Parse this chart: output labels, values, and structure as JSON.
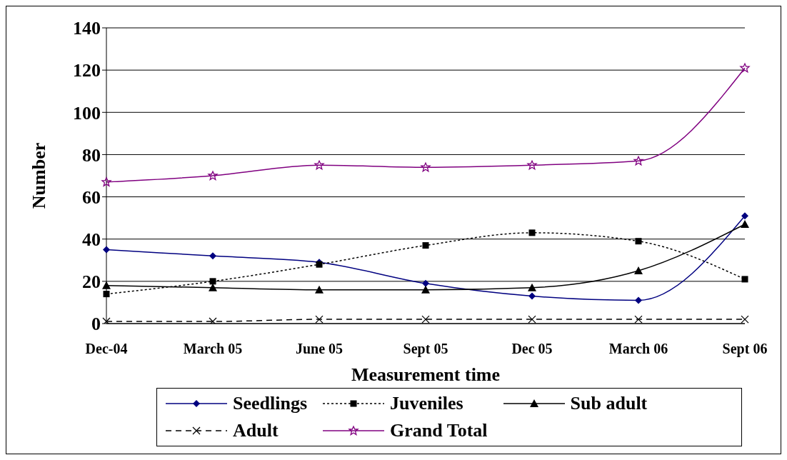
{
  "chart_data": {
    "type": "line",
    "xlabel": "Measurement time",
    "ylabel": "Number",
    "categories": [
      "Dec-04",
      "March 05",
      "June 05",
      "Sept 05",
      "Dec 05",
      "March 06",
      "Sept 06"
    ],
    "ylim": [
      0,
      140
    ],
    "yticks": [
      0,
      20,
      40,
      60,
      80,
      100,
      120,
      140
    ],
    "grid": "y",
    "legend": "bottom",
    "series": [
      {
        "name": "Seedlings",
        "color": "#000080",
        "marker": "diamond",
        "line_style": "solid",
        "values": [
          35,
          32,
          29,
          19,
          13,
          11,
          51
        ]
      },
      {
        "name": "Juveniles",
        "color": "#000000",
        "marker": "square",
        "line_style": "dotted",
        "values": [
          14,
          20,
          28,
          37,
          43,
          39,
          21
        ]
      },
      {
        "name": "Sub adult",
        "color": "#000000",
        "marker": "triangle",
        "line_style": "solid",
        "values": [
          18,
          17,
          16,
          16,
          17,
          25,
          47
        ]
      },
      {
        "name": "Adult",
        "color": "#000000",
        "marker": "cross",
        "line_style": "dashed",
        "values": [
          1,
          1,
          2,
          2,
          2,
          2,
          2
        ]
      },
      {
        "name": "Grand Total",
        "color": "#800080",
        "marker": "star",
        "line_style": "solid",
        "values": [
          67,
          70,
          75,
          74,
          75,
          77,
          121
        ]
      }
    ]
  }
}
